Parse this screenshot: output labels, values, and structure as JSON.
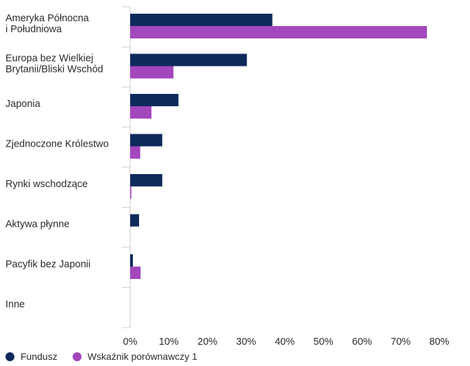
{
  "chart_data": {
    "type": "bar",
    "orientation": "horizontal",
    "categories": [
      [
        "Ameryka Północna",
        "i Południowa"
      ],
      [
        "Europa bez Wielkiej",
        "Brytanii/Bliski Wschód"
      ],
      [
        "Japonia"
      ],
      [
        "Zjednoczone Królestwo"
      ],
      [
        "Rynki wschodzące"
      ],
      [
        "Aktywa płynne"
      ],
      [
        "Pacyfik bez Japonii"
      ],
      [
        "Inne"
      ]
    ],
    "series": [
      {
        "name": "Fundusz",
        "color": "#0e2a5c",
        "values": [
          36.8,
          30.2,
          12.5,
          8.3,
          8.3,
          2.3,
          0.7,
          0
        ]
      },
      {
        "name": "Wskaźnik porównawczy 1",
        "color": "#a347bd",
        "values": [
          76.8,
          11.2,
          5.5,
          2.6,
          0.3,
          0,
          2.7,
          0
        ]
      }
    ],
    "xticks": [
      0,
      10,
      20,
      30,
      40,
      50,
      60,
      70,
      80
    ],
    "xtick_labels": [
      "0%",
      "10%",
      "20%",
      "30%",
      "40%",
      "50%",
      "60%",
      "70%",
      "80%"
    ],
    "xlim": [
      0,
      88
    ],
    "grid": false,
    "legend_position": "bottom-left"
  }
}
